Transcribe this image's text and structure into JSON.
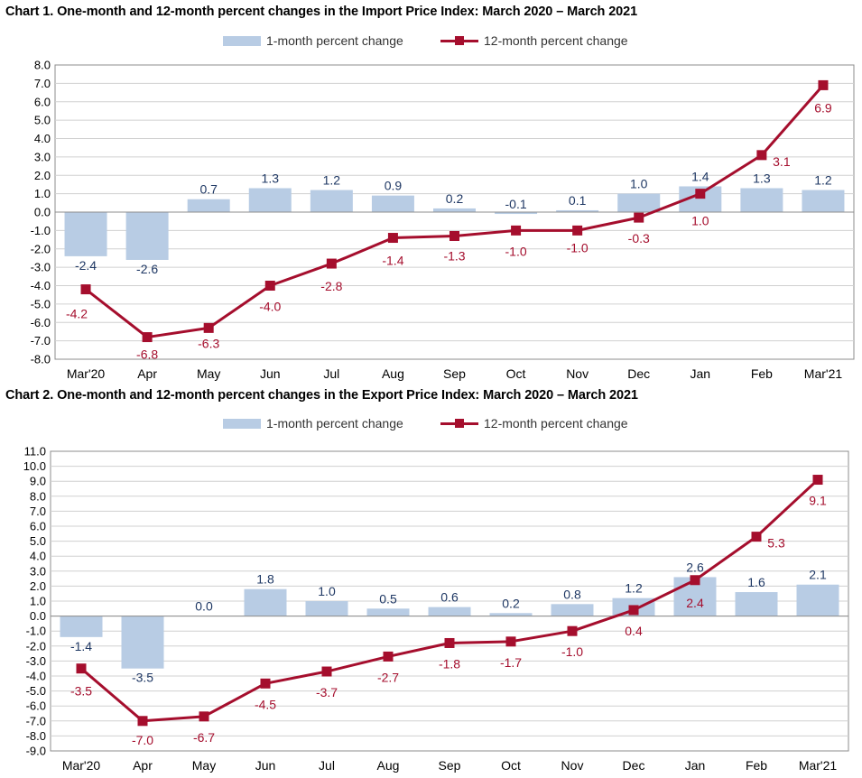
{
  "chart_data": [
    {
      "type": "bar",
      "title": "Chart 1. One-month and 12-month percent changes in the Import Price Index: March 2020 – March 2021",
      "categories": [
        "Mar'20",
        "Apr",
        "May",
        "Jun",
        "Jul",
        "Aug",
        "Sep",
        "Oct",
        "Nov",
        "Dec",
        "Jan",
        "Feb",
        "Mar'21"
      ],
      "series": [
        {
          "name": "1-month percent change",
          "kind": "bar",
          "values": [
            -2.4,
            -2.6,
            0.7,
            1.3,
            1.2,
            0.9,
            0.2,
            -0.1,
            0.1,
            1.0,
            1.4,
            1.3,
            1.2
          ],
          "labels": [
            "-2.4",
            "-2.6",
            "0.7",
            "1.3",
            "1.2",
            "0.9",
            "0.2",
            "-0.1",
            "0.1",
            "1.0",
            "1.4",
            "1.3",
            "1.2"
          ]
        },
        {
          "name": "12-month percent change",
          "kind": "line",
          "values": [
            -4.2,
            -6.8,
            -6.3,
            -4.0,
            -2.8,
            -1.4,
            -1.3,
            -1.0,
            -1.0,
            -0.3,
            1.0,
            3.1,
            6.9
          ],
          "labels": [
            "-4.2",
            "-6.8",
            "-6.3",
            "-4.0",
            "-2.8",
            "-1.4",
            "-1.3",
            "-1.0",
            "-1.0",
            "-0.3",
            "1.0",
            "3.1",
            "6.9"
          ]
        }
      ],
      "ylim": [
        -8.0,
        8.0
      ],
      "yticks": [
        "8.0",
        "7.0",
        "6.0",
        "5.0",
        "4.0",
        "3.0",
        "2.0",
        "1.0",
        "0.0",
        "-1.0",
        "-2.0",
        "-3.0",
        "-4.0",
        "-5.0",
        "-6.0",
        "-7.0",
        "-8.0"
      ],
      "grid": true,
      "legend": "top-center",
      "colors": {
        "bar": "#b8cce4",
        "line": "#a50e2d",
        "bar_label": "#1f3864",
        "line_label": "#a50e2d"
      }
    },
    {
      "type": "bar",
      "title": "Chart 2. One-month and 12-month percent changes in the Export Price Index: March 2020 – March 2021",
      "categories": [
        "Mar'20",
        "Apr",
        "May",
        "Jun",
        "Jul",
        "Aug",
        "Sep",
        "Oct",
        "Nov",
        "Dec",
        "Jan",
        "Feb",
        "Mar'21"
      ],
      "series": [
        {
          "name": "1-month percent change",
          "kind": "bar",
          "values": [
            -1.4,
            -3.5,
            0.0,
            1.8,
            1.0,
            0.5,
            0.6,
            0.2,
            0.8,
            1.2,
            2.6,
            1.6,
            2.1
          ],
          "labels": [
            "-1.4",
            "-3.5",
            "0.0",
            "1.8",
            "1.0",
            "0.5",
            "0.6",
            "0.2",
            "0.8",
            "1.2",
            "2.6",
            "1.6",
            "2.1"
          ]
        },
        {
          "name": "12-month percent change",
          "kind": "line",
          "values": [
            -3.5,
            -7.0,
            -6.7,
            -4.5,
            -3.7,
            -2.7,
            -1.8,
            -1.7,
            -1.0,
            0.4,
            2.4,
            5.3,
            9.1
          ],
          "labels": [
            "-3.5",
            "-7.0",
            "-6.7",
            "-4.5",
            "-3.7",
            "-2.7",
            "-1.8",
            "-1.7",
            "-1.0",
            "0.4",
            "2.4",
            "5.3",
            "9.1"
          ]
        }
      ],
      "ylim": [
        -9.0,
        11.0
      ],
      "yticks": [
        "11.0",
        "10.0",
        "9.0",
        "8.0",
        "7.0",
        "6.0",
        "5.0",
        "4.0",
        "3.0",
        "2.0",
        "1.0",
        "0.0",
        "-1.0",
        "-2.0",
        "-3.0",
        "-4.0",
        "-5.0",
        "-6.0",
        "-7.0",
        "-8.0",
        "-9.0"
      ],
      "grid": true,
      "legend": "top-center",
      "colors": {
        "bar": "#b8cce4",
        "line": "#a50e2d",
        "bar_label": "#1f3864",
        "line_label": "#a50e2d"
      }
    }
  ]
}
